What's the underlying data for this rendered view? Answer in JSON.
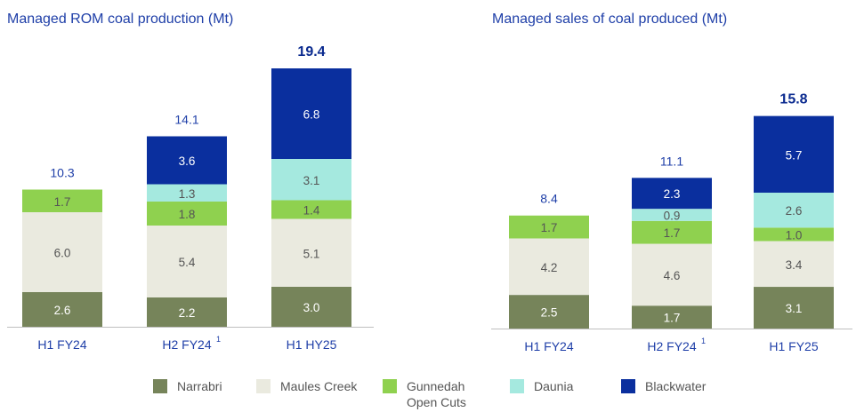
{
  "colors": {
    "Narrabri": "#76845a",
    "Maules Creek": "#eaeadf",
    "Gunnedah Open Cuts": "#8fd14f",
    "Daunia": "#a5e9df",
    "Blackwater": "#0a2f9e",
    "title": "#1f3fa8"
  },
  "legend": {
    "items": [
      {
        "key": "Narrabri",
        "lines": [
          "Narrabri"
        ]
      },
      {
        "key": "Maules Creek",
        "lines": [
          "Maules Creek"
        ]
      },
      {
        "key": "Gunnedah Open Cuts",
        "lines": [
          "Gunnedah",
          "Open Cuts"
        ]
      },
      {
        "key": "Daunia",
        "lines": [
          "Daunia"
        ]
      },
      {
        "key": "Blackwater",
        "lines": [
          "Blackwater"
        ]
      }
    ]
  },
  "chart_data": [
    {
      "type": "bar",
      "stacked": true,
      "title": "Managed ROM coal production (Mt)",
      "categories": [
        "H1 FY24",
        "H2 FY24",
        "H1 HY25"
      ],
      "footnotes": [
        "",
        "1",
        ""
      ],
      "totals": [
        "10.3",
        "14.1",
        "19.4"
      ],
      "total_bold": [
        false,
        false,
        true
      ],
      "series": [
        {
          "name": "Narrabri",
          "values": [
            2.6,
            2.2,
            3.0
          ]
        },
        {
          "name": "Maules Creek",
          "values": [
            6.0,
            5.4,
            5.1
          ]
        },
        {
          "name": "Gunnedah Open Cuts",
          "values": [
            1.7,
            1.8,
            1.4
          ]
        },
        {
          "name": "Daunia",
          "values": [
            null,
            1.3,
            3.1
          ]
        },
        {
          "name": "Blackwater",
          "values": [
            null,
            3.6,
            6.8
          ]
        }
      ],
      "ylim": [
        0,
        19.4
      ]
    },
    {
      "type": "bar",
      "stacked": true,
      "title": "Managed sales of coal produced (Mt)",
      "categories": [
        "H1 FY24",
        "H2 FY24",
        "H1 FY25"
      ],
      "footnotes": [
        "",
        "1",
        ""
      ],
      "totals": [
        "8.4",
        "11.1",
        "15.8"
      ],
      "total_bold": [
        false,
        false,
        true
      ],
      "series": [
        {
          "name": "Narrabri",
          "values": [
            2.5,
            1.7,
            3.1
          ]
        },
        {
          "name": "Maules Creek",
          "values": [
            4.2,
            4.6,
            3.4
          ]
        },
        {
          "name": "Gunnedah Open Cuts",
          "values": [
            1.7,
            1.7,
            1.0
          ]
        },
        {
          "name": "Daunia",
          "values": [
            null,
            0.9,
            2.6
          ]
        },
        {
          "name": "Blackwater",
          "values": [
            null,
            2.3,
            5.7
          ]
        }
      ],
      "ylim": [
        0,
        15.8
      ]
    }
  ]
}
